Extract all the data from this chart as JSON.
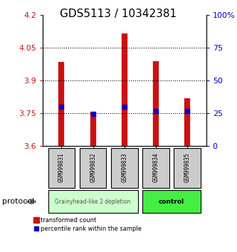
{
  "title": "GDS5113 / 10342381",
  "samples": [
    "GSM999831",
    "GSM999832",
    "GSM999833",
    "GSM999834",
    "GSM999835"
  ],
  "bar_tops": [
    3.985,
    3.758,
    4.115,
    3.988,
    3.82
  ],
  "bar_bottoms": [
    3.6,
    3.6,
    3.6,
    3.6,
    3.6
  ],
  "blue_dots": [
    3.78,
    3.748,
    3.78,
    3.762,
    3.762
  ],
  "ylim": [
    3.6,
    4.2
  ],
  "yticks_left": [
    3.6,
    3.75,
    3.9,
    4.05,
    4.2
  ],
  "yticks_right": [
    0,
    25,
    50,
    75,
    100
  ],
  "yticks_right_labels": [
    "0",
    "25",
    "50",
    "75",
    "100%"
  ],
  "gridlines": [
    3.75,
    3.9,
    4.05
  ],
  "bar_color": "#cc1111",
  "dot_color": "#0000cc",
  "group1_samples": [
    "GSM999831",
    "GSM999832",
    "GSM999833"
  ],
  "group2_samples": [
    "GSM999834",
    "GSM999835"
  ],
  "group1_label": "Grainyhead-like 2 depletion",
  "group2_label": "control",
  "group1_color": "#ccffcc",
  "group2_color": "#44ee44",
  "protocol_label": "protocol",
  "legend_bar_label": "transformed count",
  "legend_dot_label": "percentile rank within the sample",
  "title_fontsize": 11,
  "axis_label_color_left": "#cc1111",
  "axis_label_color_right": "#0000cc"
}
